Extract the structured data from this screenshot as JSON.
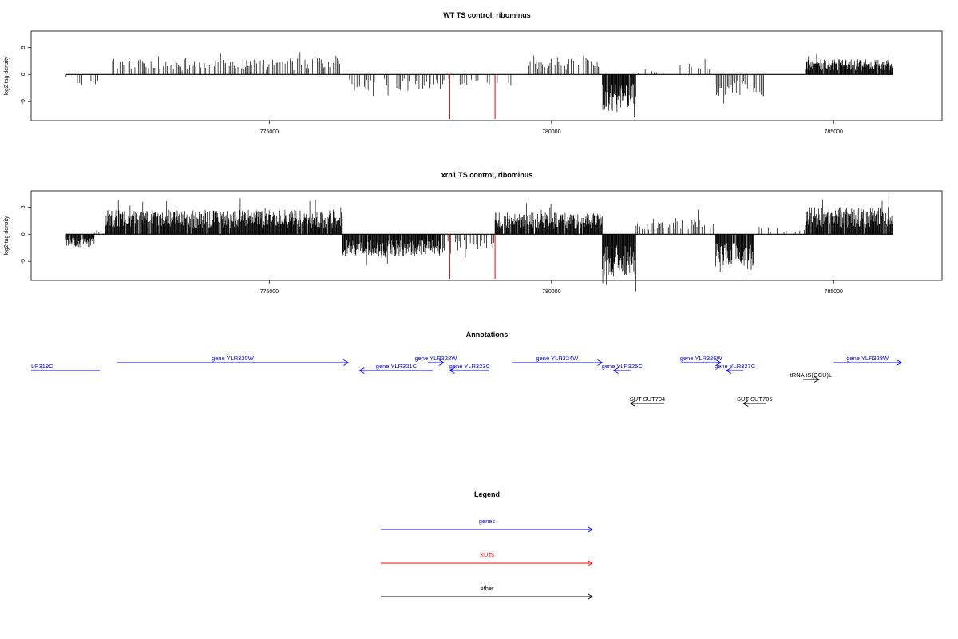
{
  "chart_data": [
    {
      "type": "bar",
      "title": "WT TS control, ribominus",
      "xlabel": "",
      "ylabel": "log2 tag density",
      "xlim": [
        770780,
        786920
      ],
      "ylim": [
        -8.5,
        8
      ],
      "x_ticks": [
        775000,
        780000,
        785000
      ],
      "x_tick_labels": [
        "775000",
        "780000",
        "785000"
      ],
      "y_ticks": [
        -5,
        0,
        5
      ],
      "y_tick_labels": [
        "-5",
        "0",
        "5"
      ],
      "data_range": [
        771400,
        786050
      ],
      "xut_markers_x": [
        778200,
        779000
      ],
      "xut_markers_y": [
        0,
        -8.2
      ],
      "series": [
        {
          "profile_regions": [
            {
              "start": 771400,
              "end": 771600,
              "level": -1.5,
              "density": "sparse"
            },
            {
              "start": 771600,
              "end": 772000,
              "level": -2.0,
              "density": "sparse"
            },
            {
              "start": 772200,
              "end": 776300,
              "level": 3.0,
              "density": "medium"
            },
            {
              "start": 776400,
              "end": 778100,
              "level": -3.0,
              "density": "medium"
            },
            {
              "start": 778100,
              "end": 779000,
              "level": -2.0,
              "density": "sparse"
            },
            {
              "start": 779000,
              "end": 779500,
              "level": -2.5,
              "density": "sparse"
            },
            {
              "start": 779600,
              "end": 780900,
              "level": 3.5,
              "density": "medium"
            },
            {
              "start": 780900,
              "end": 781500,
              "level": -7.0,
              "density": "dense"
            },
            {
              "start": 781500,
              "end": 782000,
              "level": 1.0,
              "density": "sparse"
            },
            {
              "start": 782200,
              "end": 782800,
              "level": 2.5,
              "density": "sparse"
            },
            {
              "start": 782900,
              "end": 783800,
              "level": -4.0,
              "density": "medium"
            },
            {
              "start": 784500,
              "end": 786050,
              "level": 2.8,
              "density": "dense"
            }
          ]
        }
      ]
    },
    {
      "type": "bar",
      "title": "xrn1 TS control, ribominus",
      "xlabel": "",
      "ylabel": "log2 tag density",
      "xlim": [
        770780,
        786920
      ],
      "ylim": [
        -8.5,
        8
      ],
      "x_ticks": [
        775000,
        780000,
        785000
      ],
      "x_tick_labels": [
        "775000",
        "780000",
        "785000"
      ],
      "y_ticks": [
        -5,
        0,
        5
      ],
      "y_tick_labels": [
        "-5",
        "0",
        "5"
      ],
      "data_range": [
        771400,
        786050
      ],
      "xut_markers_x": [
        778200,
        779000
      ],
      "xut_markers_y": [
        0,
        -8.2
      ],
      "series": [
        {
          "profile_regions": [
            {
              "start": 771400,
              "end": 771900,
              "level": -2.5,
              "density": "dense"
            },
            {
              "start": 771900,
              "end": 772100,
              "level": 0.5,
              "density": "sparse"
            },
            {
              "start": 772100,
              "end": 776300,
              "level": 4.5,
              "density": "dense"
            },
            {
              "start": 776300,
              "end": 778100,
              "level": -4.0,
              "density": "dense"
            },
            {
              "start": 778100,
              "end": 779000,
              "level": -3.0,
              "density": "medium"
            },
            {
              "start": 779000,
              "end": 780900,
              "level": 4.0,
              "density": "dense"
            },
            {
              "start": 780900,
              "end": 781500,
              "level": -7.5,
              "density": "dense"
            },
            {
              "start": 781500,
              "end": 782900,
              "level": 3.0,
              "density": "medium"
            },
            {
              "start": 782900,
              "end": 783600,
              "level": -6.0,
              "density": "dense"
            },
            {
              "start": 783600,
              "end": 784500,
              "level": 1.5,
              "density": "sparse"
            },
            {
              "start": 784500,
              "end": 786050,
              "level": 5.0,
              "density": "dense"
            }
          ]
        }
      ]
    }
  ],
  "annotations": {
    "title": "Annotations",
    "xlim": [
      770780,
      786920
    ],
    "colors": {
      "gene": "#0000ff",
      "xut": "#ff0000",
      "other": "#000000"
    },
    "features": [
      {
        "label": "LR319C",
        "kind": "gene",
        "strand": "none",
        "start": 770780,
        "end": 772000,
        "row": 0,
        "label_at": "start"
      },
      {
        "label": "gene YLR320W",
        "kind": "gene",
        "strand": "+",
        "start": 772300,
        "end": 776400,
        "row": 1,
        "label_at": "center"
      },
      {
        "label": "gene YLR321C",
        "kind": "gene",
        "strand": "-",
        "start": 776600,
        "end": 777900,
        "row": 0,
        "label_at": "center"
      },
      {
        "label": "gene YLR322W",
        "kind": "gene",
        "strand": "+",
        "start": 777900,
        "end": 778000,
        "row": 1,
        "label_at": "center"
      },
      {
        "label": "gene YLR323C",
        "kind": "gene",
        "strand": "-",
        "start": 778200,
        "end": 778900,
        "row": 0,
        "label_at": "center"
      },
      {
        "label": "gene YLR324W",
        "kind": "gene",
        "strand": "+",
        "start": 779300,
        "end": 780900,
        "row": 1,
        "label_at": "center"
      },
      {
        "label": "gene YLR325C",
        "kind": "gene",
        "strand": "-",
        "start": 781100,
        "end": 781400,
        "row": 0,
        "label_at": "center"
      },
      {
        "label": "gene YLR326W",
        "kind": "gene",
        "strand": "+",
        "start": 782300,
        "end": 783000,
        "row": 1,
        "label_at": "center"
      },
      {
        "label": "gene YLR327C",
        "kind": "gene",
        "strand": "-",
        "start": 783100,
        "end": 783400,
        "row": 0,
        "label_at": "center"
      },
      {
        "label": "tRNA tS(GCU)L",
        "kind": "other",
        "strand": "+",
        "start": 784500,
        "end": 784700,
        "row": 2,
        "label_at": "center"
      },
      {
        "label": "gene YLR328W",
        "kind": "gene",
        "strand": "+",
        "start": 785000,
        "end": 786200,
        "row": 1,
        "label_at": "center"
      },
      {
        "label": "SUT SUT704",
        "kind": "other",
        "strand": "-",
        "start": 781400,
        "end": 782000,
        "row": 3,
        "label_at": "center"
      },
      {
        "label": "SUT SUT705",
        "kind": "other",
        "strand": "-",
        "start": 783400,
        "end": 783800,
        "row": 3,
        "label_at": "center"
      }
    ]
  },
  "legend": {
    "title": "Legend",
    "items": [
      {
        "label": "genes",
        "color": "#0000ff"
      },
      {
        "label": "XUTs",
        "color": "#ff0000"
      },
      {
        "label": "other",
        "color": "#000000"
      }
    ]
  }
}
